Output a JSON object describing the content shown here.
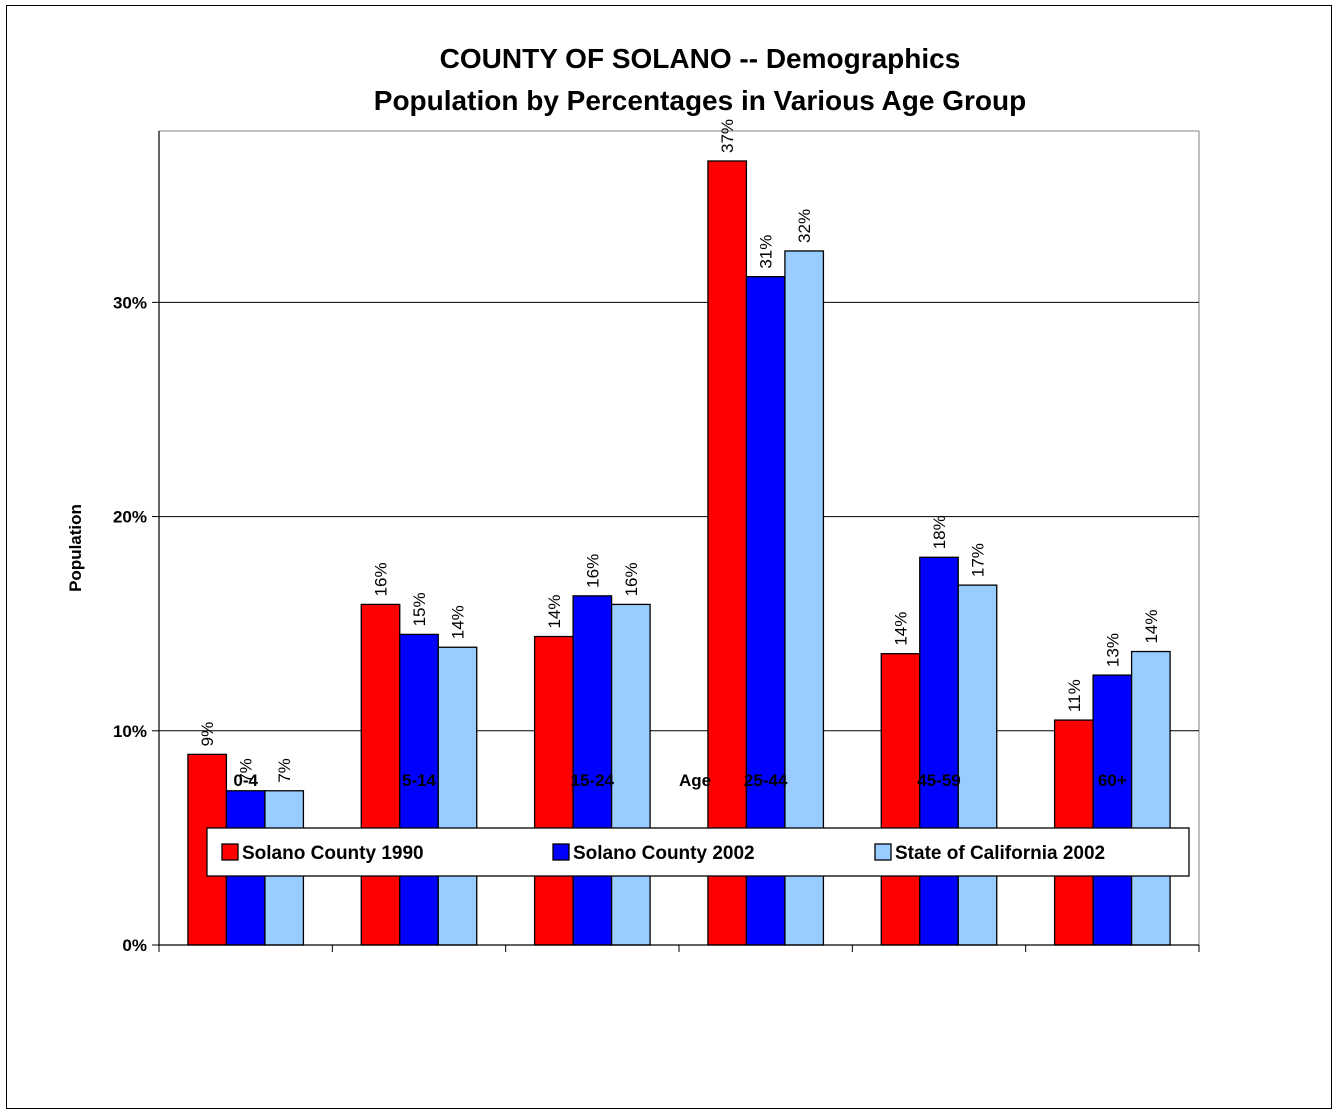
{
  "chart_data": {
    "type": "bar",
    "title": [
      "COUNTY OF SOLANO -- Demographics",
      "Population by Percentages in Various Age Group"
    ],
    "ylabel": "Population",
    "xlabel": "Age",
    "categories": [
      "0-4",
      "5-14",
      "15-24",
      "25-44",
      "45-59",
      "60+"
    ],
    "ylim": [
      0,
      0.38
    ],
    "yticks": [
      0,
      0.1,
      0.2,
      0.3
    ],
    "ytick_labels": [
      "0%",
      "10%",
      "20%",
      "30%"
    ],
    "grid": "horizontal major",
    "legend_position": "bottom",
    "series": [
      {
        "name": "Solano County  1990",
        "color": "#ff0000",
        "values": [
          0.089,
          0.159,
          0.144,
          0.366,
          0.136,
          0.105
        ],
        "labels": [
          "9%",
          "16%",
          "14%",
          "37%",
          "14%",
          "11%"
        ]
      },
      {
        "name": "Solano County  2002",
        "color": "#0000ff",
        "values": [
          0.072,
          0.145,
          0.163,
          0.312,
          0.181,
          0.126
        ],
        "labels": [
          "7%",
          "15%",
          "16%",
          "31%",
          "18%",
          "13%"
        ]
      },
      {
        "name": "State of California 2002",
        "color": "#99ccff",
        "values": [
          0.072,
          0.139,
          0.159,
          0.324,
          0.168,
          0.137
        ],
        "labels": [
          "7%",
          "14%",
          "16%",
          "32%",
          "17%",
          "14%"
        ]
      }
    ]
  }
}
